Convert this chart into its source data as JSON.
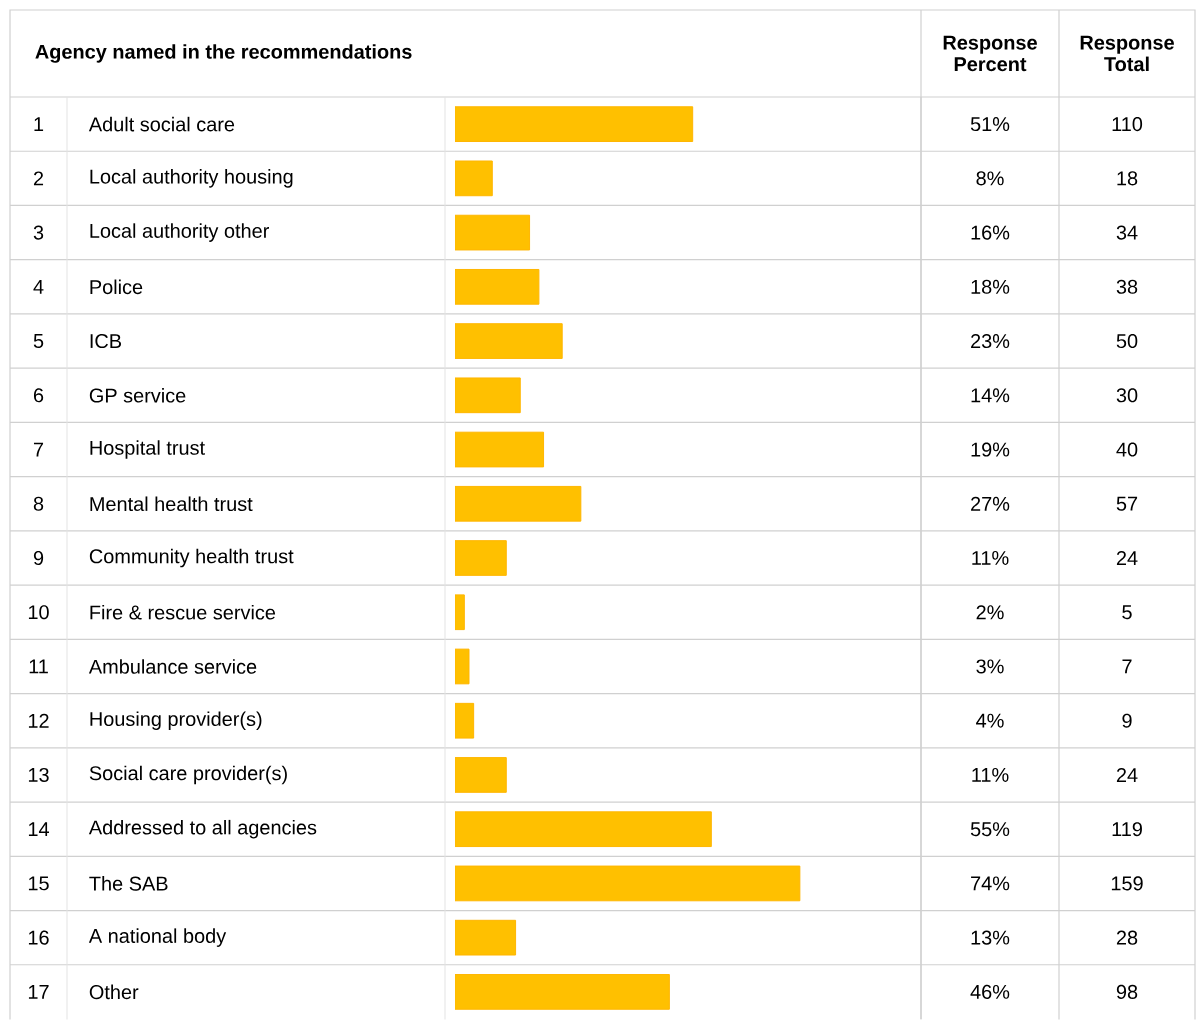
{
  "chart_data": {
    "type": "bar",
    "orientation": "horizontal",
    "title": "Agency named in the recommendations",
    "categories": [
      "Adult social care",
      "Local authority housing",
      "Local authority other",
      "Police",
      "ICB",
      "GP service",
      "Hospital trust",
      "Mental health trust",
      "Community health trust",
      "Fire & rescue service",
      "Ambulance service",
      "Housing provider(s)",
      "Social care provider(s)",
      "Addressed to all agencies",
      "The SAB",
      "A national body",
      "Other"
    ],
    "values": [
      51,
      8,
      16,
      18,
      23,
      14,
      19,
      27,
      11,
      2,
      3,
      4,
      11,
      55,
      74,
      13,
      46
    ],
    "value_labels": [
      "51%",
      "8%",
      "16%",
      "18%",
      "23%",
      "14%",
      "19%",
      "27%",
      "11%",
      "2%",
      "3%",
      "4%",
      "11%",
      "55%",
      "74%",
      "13%",
      "46%"
    ],
    "color": "#ffc000",
    "xlim": [
      0,
      100
    ],
    "tick_labels": false,
    "annotations": [
      "Response Percent",
      "Response Total",
      "1",
      "2",
      "3",
      "4",
      "5",
      "6",
      "7",
      "8",
      "9",
      "10",
      "11",
      "12",
      "13",
      "14",
      "15",
      "16",
      "17",
      "110",
      "18",
      "34",
      "38",
      "50",
      "30",
      "40",
      "57",
      "24",
      "5",
      "7",
      "9",
      "24",
      "119",
      "159",
      "28",
      "98"
    ]
  }
}
